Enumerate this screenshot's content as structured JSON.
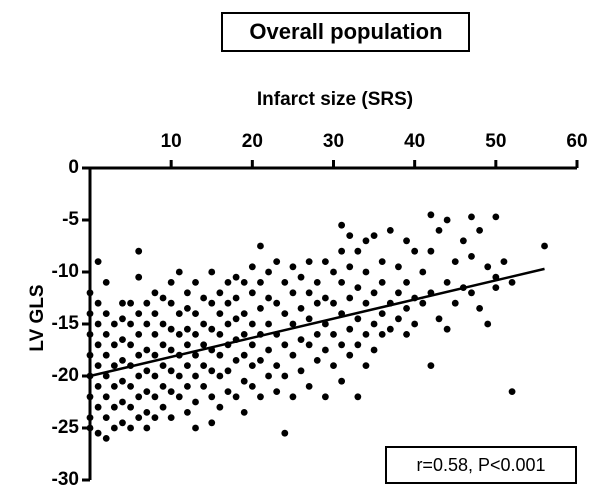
{
  "chart_data": {
    "type": "scatter",
    "title": "Overall population",
    "x_label": "Infarct size (SRS)",
    "y_label": "LV GLS",
    "annotation": "r=0.58, P<0.001",
    "color": "#000000",
    "xlim": [
      0,
      60
    ],
    "xticks": [
      10,
      20,
      30,
      40,
      50,
      60
    ],
    "ylim": [
      -30,
      0
    ],
    "yticks": [
      0,
      -5,
      -10,
      -15,
      -20,
      -25,
      -30
    ],
    "fit_line": {
      "x": [
        0,
        56
      ],
      "y": [
        -20,
        -9.7
      ]
    },
    "x": [
      0,
      0,
      0,
      0,
      0,
      0,
      0,
      0,
      1,
      1,
      1,
      1,
      1,
      1,
      1,
      1,
      2,
      2,
      2,
      2,
      2,
      2,
      2,
      2,
      3,
      3,
      3,
      3,
      3,
      3,
      4,
      4,
      4,
      4,
      4,
      4,
      4,
      5,
      5,
      5,
      5,
      5,
      5,
      5,
      6,
      6,
      6,
      6,
      6,
      6,
      6,
      6,
      7,
      7,
      7,
      7,
      7,
      7,
      7,
      8,
      8,
      8,
      8,
      8,
      8,
      8,
      9,
      9,
      9,
      9,
      9,
      9,
      10,
      10,
      10,
      10,
      10,
      10,
      10,
      11,
      11,
      11,
      11,
      11,
      11,
      12,
      12,
      12,
      12,
      12,
      12,
      12,
      13,
      13,
      13,
      13,
      13,
      13,
      13,
      14,
      14,
      14,
      14,
      14,
      15,
      15,
      15,
      15,
      15,
      15,
      15,
      16,
      16,
      16,
      16,
      16,
      16,
      17,
      17,
      17,
      17,
      17,
      17,
      18,
      18,
      18,
      18,
      18,
      18,
      19,
      19,
      19,
      19,
      19,
      19,
      20,
      20,
      20,
      20,
      20,
      20,
      21,
      21,
      21,
      21,
      21,
      21,
      22,
      22,
      22,
      22,
      22,
      23,
      23,
      23,
      23,
      23,
      24,
      24,
      24,
      24,
      24,
      25,
      25,
      25,
      25,
      25,
      26,
      26,
      26,
      26,
      27,
      27,
      27,
      27,
      27,
      28,
      28,
      28,
      28,
      29,
      29,
      29,
      29,
      29,
      30,
      30,
      30,
      30,
      31,
      31,
      31,
      31,
      31,
      31,
      32,
      32,
      32,
      32,
      32,
      33,
      33,
      33,
      33,
      33,
      34,
      34,
      34,
      34,
      34,
      35,
      35,
      35,
      35,
      36,
      36,
      36,
      36,
      37,
      37,
      37,
      38,
      38,
      38,
      39,
      39,
      39,
      39,
      40,
      40,
      40,
      41,
      41,
      42,
      42,
      42,
      42,
      43,
      43,
      44,
      44,
      44,
      45,
      45,
      46,
      46,
      47,
      47,
      47,
      48,
      48,
      49,
      49,
      50,
      50,
      50,
      51,
      52,
      52,
      56
    ],
    "values": [
      -12,
      -14,
      -16,
      -18,
      -20,
      -22,
      -24,
      -25,
      -9,
      -13,
      -15,
      -17,
      -19,
      -21,
      -23,
      -25.5,
      -11,
      -14,
      -16,
      -18,
      -20,
      -22,
      -24,
      -26,
      -15,
      -17,
      -19,
      -21,
      -23,
      -25,
      -13,
      -14.5,
      -16.5,
      -18.5,
      -20.5,
      -22.5,
      -24.5,
      -13,
      -15,
      -17,
      -19,
      -21,
      -23,
      -25,
      -8,
      -10.5,
      -14,
      -16,
      -18,
      -20,
      -22,
      -24,
      -13,
      -15,
      -17.5,
      -19.5,
      -21.5,
      -23.5,
      -25,
      -12,
      -14,
      -16,
      -18,
      -20,
      -22,
      -24,
      -12.5,
      -15,
      -17,
      -19,
      -21,
      -23,
      -11,
      -13,
      -15.5,
      -17.5,
      -19.5,
      -21.5,
      -24,
      -10,
      -14,
      -16,
      -18,
      -20,
      -22,
      -12,
      -13.5,
      -15.5,
      -17,
      -19,
      -21,
      -23.5,
      -11,
      -14,
      -16,
      -18,
      -20,
      -22.5,
      -25,
      -12.5,
      -15,
      -17,
      -19,
      -21,
      -10,
      -13,
      -15.5,
      -17.5,
      -19.5,
      -22,
      -24.5,
      -12,
      -14,
      -16,
      -18,
      -20,
      -23,
      -11,
      -13,
      -15,
      -17,
      -19.5,
      -21.5,
      -10.5,
      -12.5,
      -14.5,
      -16.5,
      -18.5,
      -22,
      -11,
      -14,
      -16,
      -18,
      -20.5,
      -23.5,
      -9.5,
      -12,
      -15,
      -17,
      -19,
      -21,
      -7.5,
      -11,
      -13.5,
      -16,
      -18.5,
      -22,
      -10,
      -12.5,
      -15,
      -17.5,
      -20,
      -9,
      -13,
      -16,
      -19,
      -21.5,
      -11,
      -14,
      -17,
      -20,
      -25.5,
      -9.5,
      -12,
      -15,
      -18,
      -22,
      -10.5,
      -13.5,
      -16.5,
      -19.5,
      -9,
      -12,
      -14.5,
      -17,
      -21,
      -11,
      -13,
      -16,
      -18.5,
      -9,
      -12.5,
      -15,
      -17.5,
      -22,
      -10,
      -13,
      -16,
      -19,
      -5.5,
      -8,
      -11,
      -14,
      -17,
      -20.5,
      -6.5,
      -9.5,
      -12.5,
      -15.5,
      -18,
      -8,
      -11.5,
      -14.5,
      -17,
      -22,
      -7,
      -10,
      -13,
      -16,
      -19,
      -6.5,
      -12,
      -15,
      -17.5,
      -9,
      -11,
      -14,
      -16,
      -6,
      -13,
      -15.5,
      -9.5,
      -12,
      -14.5,
      -7,
      -11,
      -13.5,
      -16,
      -8,
      -12.5,
      -15,
      -10,
      -13,
      -4.5,
      -8,
      -12,
      -19,
      -6,
      -14.5,
      -5,
      -11,
      -15.5,
      -9,
      -13,
      -7,
      -11.5,
      -4.7,
      -8.5,
      -12,
      -6,
      -13.5,
      -9.5,
      -15,
      -4.7,
      -10.5,
      -11.5,
      -9,
      -11,
      -21.5,
      -7.5
    ]
  }
}
